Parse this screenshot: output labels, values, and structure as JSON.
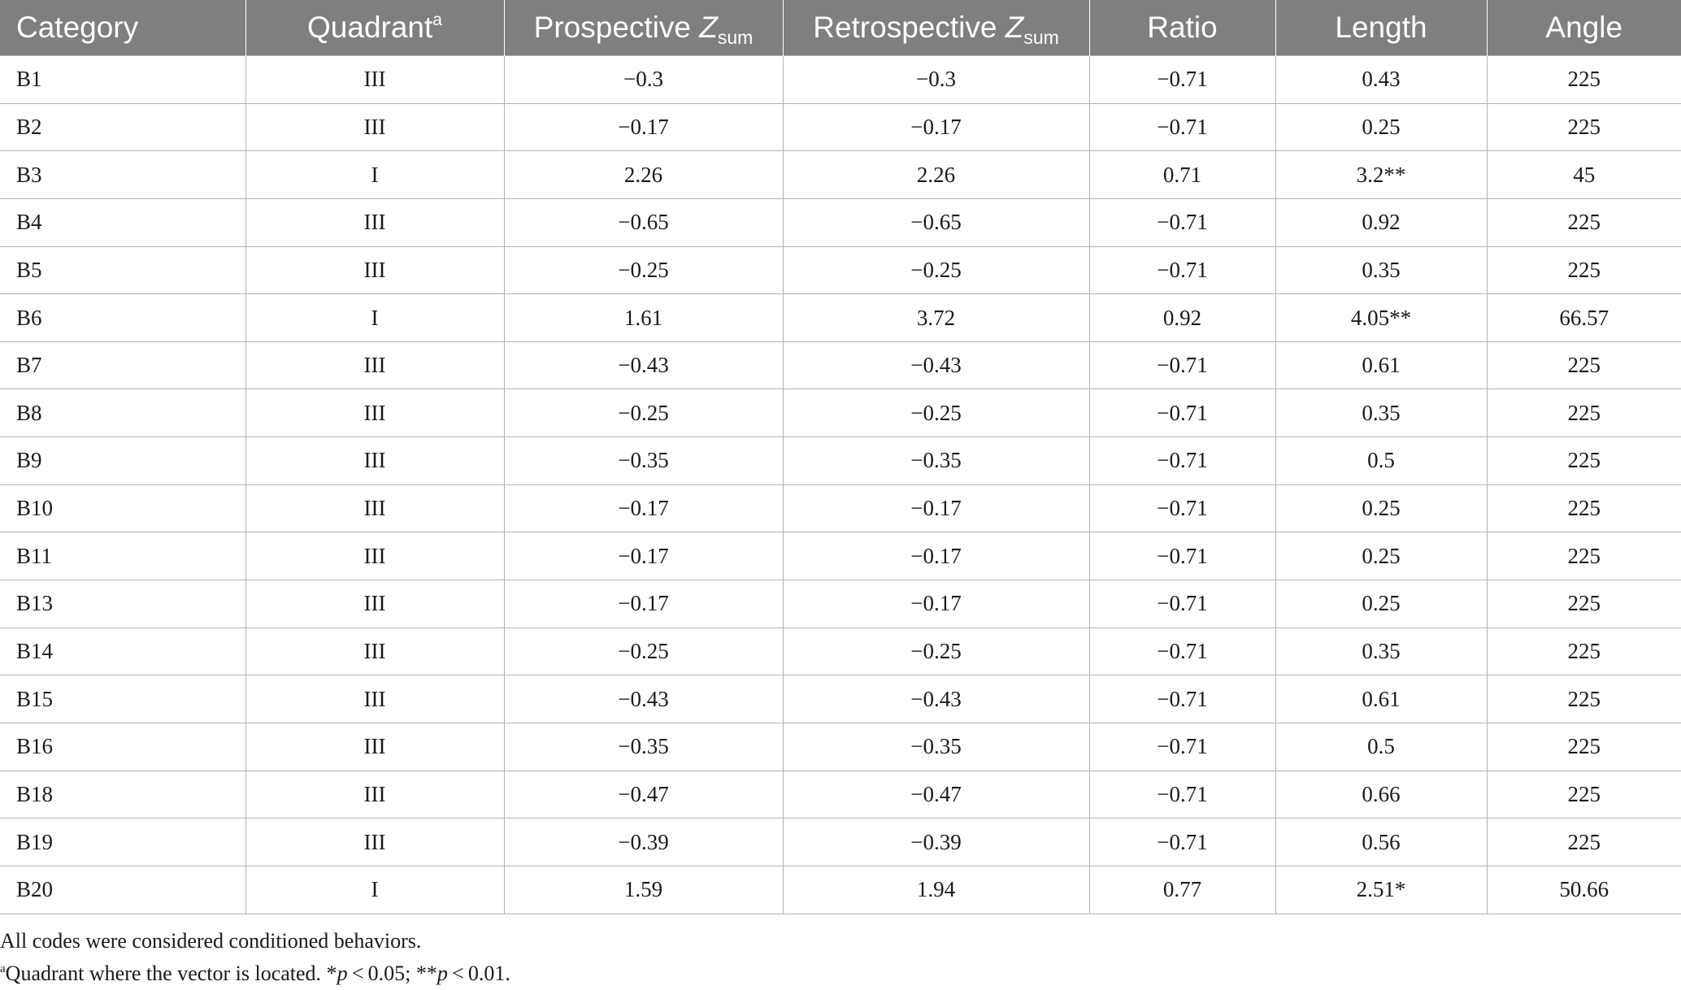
{
  "table": {
    "headers": {
      "category": "Category",
      "quadrant": "Quadrant",
      "quadrant_sup": "a",
      "prospective": "Prospective ",
      "prospective_z": "Z",
      "prospective_sub": "sum",
      "retrospective": "Retrospective ",
      "retrospective_z": "Z",
      "retrospective_sub": "sum",
      "ratio": "Ratio",
      "length": "Length",
      "angle": "Angle"
    },
    "rows": [
      [
        "B1",
        "III",
        "−0.3",
        "−0.3",
        "−0.71",
        "0.43",
        "225"
      ],
      [
        "B2",
        "III",
        "−0.17",
        "−0.17",
        "−0.71",
        "0.25",
        "225"
      ],
      [
        "B3",
        "I",
        "2.26",
        "2.26",
        "0.71",
        "3.2**",
        "45"
      ],
      [
        "B4",
        "III",
        "−0.65",
        "−0.65",
        "−0.71",
        "0.92",
        "225"
      ],
      [
        "B5",
        "III",
        "−0.25",
        "−0.25",
        "−0.71",
        "0.35",
        "225"
      ],
      [
        "B6",
        "I",
        "1.61",
        "3.72",
        "0.92",
        "4.05**",
        "66.57"
      ],
      [
        "B7",
        "III",
        "−0.43",
        "−0.43",
        "−0.71",
        "0.61",
        "225"
      ],
      [
        "B8",
        "III",
        "−0.25",
        "−0.25",
        "−0.71",
        "0.35",
        "225"
      ],
      [
        "B9",
        "III",
        "−0.35",
        "−0.35",
        "−0.71",
        "0.5",
        "225"
      ],
      [
        "B10",
        "III",
        "−0.17",
        "−0.17",
        "−0.71",
        "0.25",
        "225"
      ],
      [
        "B11",
        "III",
        "−0.17",
        "−0.17",
        "−0.71",
        "0.25",
        "225"
      ],
      [
        "B13",
        "III",
        "−0.17",
        "−0.17",
        "−0.71",
        "0.25",
        "225"
      ],
      [
        "B14",
        "III",
        "−0.25",
        "−0.25",
        "−0.71",
        "0.35",
        "225"
      ],
      [
        "B15",
        "III",
        "−0.43",
        "−0.43",
        "−0.71",
        "0.61",
        "225"
      ],
      [
        "B16",
        "III",
        "−0.35",
        "−0.35",
        "−0.71",
        "0.5",
        "225"
      ],
      [
        "B18",
        "III",
        "−0.47",
        "−0.47",
        "−0.71",
        "0.66",
        "225"
      ],
      [
        "B19",
        "III",
        "−0.39",
        "−0.39",
        "−0.71",
        "0.56",
        "225"
      ],
      [
        "B20",
        "I",
        "1.59",
        "1.94",
        "0.77",
        "2.51*",
        "50.66"
      ]
    ]
  },
  "notes": {
    "line1": "All codes were considered conditioned behaviors.",
    "line2_sup": "a",
    "line2_a": "Quadrant where the vector is located. *",
    "line2_p1": "p",
    "line2_b": " < 0.05; **",
    "line2_p2": "p",
    "line2_c": " < 0.01."
  }
}
